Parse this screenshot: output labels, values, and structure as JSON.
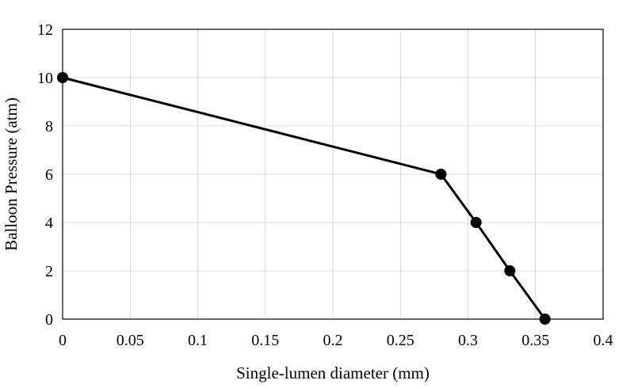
{
  "chart_data": {
    "type": "line",
    "title": "",
    "xlabel": "Single-lumen diameter (mm)",
    "ylabel": "Balloon Pressure (atm)",
    "xlim": [
      0,
      0.4
    ],
    "ylim": [
      0,
      12
    ],
    "x_ticks": [
      0,
      0.05,
      0.1,
      0.15,
      0.2,
      0.25,
      0.3,
      0.35,
      0.4
    ],
    "x_tick_labels": [
      "0",
      "0.05",
      "0.1",
      "0.15",
      "0.2",
      "0.25",
      "0.3",
      "0.35",
      "0.4"
    ],
    "y_ticks": [
      0,
      2,
      4,
      6,
      8,
      10,
      12
    ],
    "y_tick_labels": [
      "0",
      "2",
      "4",
      "6",
      "8",
      "10",
      "12"
    ],
    "grid": true,
    "legend": "none",
    "series": [
      {
        "x": [
          0,
          0.28,
          0.306,
          0.331,
          0.357
        ],
        "y": [
          10,
          6,
          4,
          2,
          0
        ],
        "marker": "circle"
      }
    ],
    "colors": {
      "line": "#000000",
      "marker": "#000000",
      "grid": "#d9d9d9",
      "axis": "#000000"
    }
  }
}
